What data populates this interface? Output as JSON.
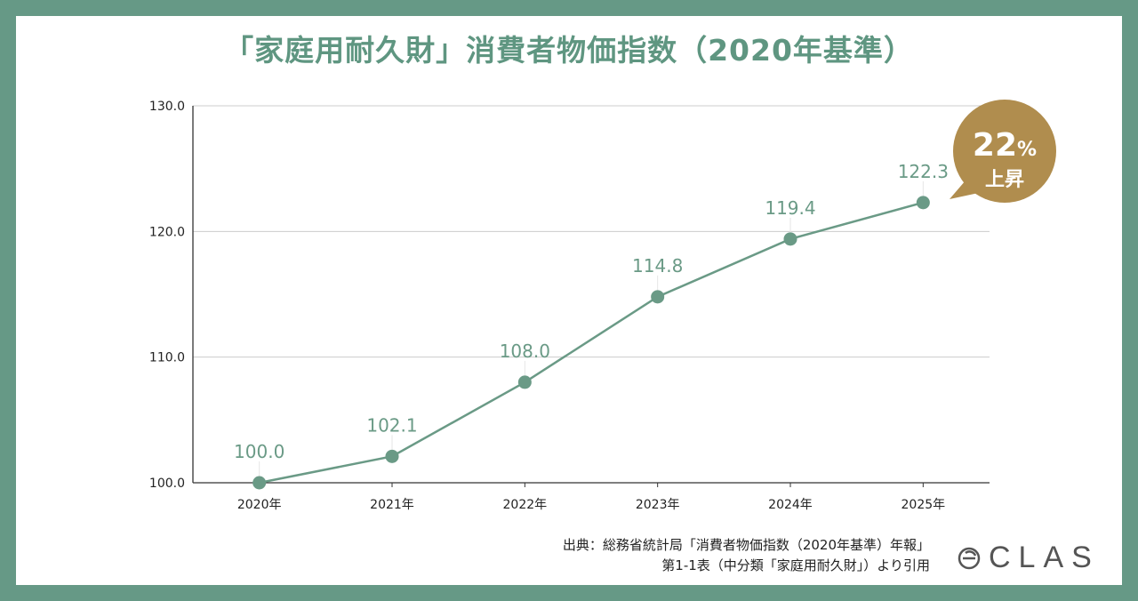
{
  "title": "「家庭用耐久財」消費者物価指数（2020年基準）",
  "chart_data": {
    "type": "line",
    "title": "「家庭用耐久財」消費者物価指数（2020年基準）",
    "categories": [
      "2020年",
      "2021年",
      "2022年",
      "2023年",
      "2024年",
      "2025年"
    ],
    "values": [
      100.0,
      102.1,
      108.0,
      114.8,
      119.4,
      122.3
    ],
    "data_labels": [
      "100.0",
      "102.1",
      "108.0",
      "114.8",
      "119.4",
      "122.3"
    ],
    "yticks": [
      "100.0",
      "110.0",
      "120.0",
      "130.0"
    ],
    "ylim": [
      100,
      130
    ],
    "grid": true,
    "xlabel": "",
    "ylabel": "",
    "line_color": "#6a9a86",
    "annotation": {
      "value": "22",
      "unit": "%",
      "text": "上昇",
      "color": "#b08d4e"
    }
  },
  "source": {
    "line1": "出典：総務省統計局「消費者物価指数（2020年基準）年報」",
    "line2": "第1-1表（中分類「家庭用耐久財」）より引用"
  },
  "logo": {
    "text": "CLAS"
  },
  "colors": {
    "frame": "#669986",
    "title": "#5f9681"
  }
}
